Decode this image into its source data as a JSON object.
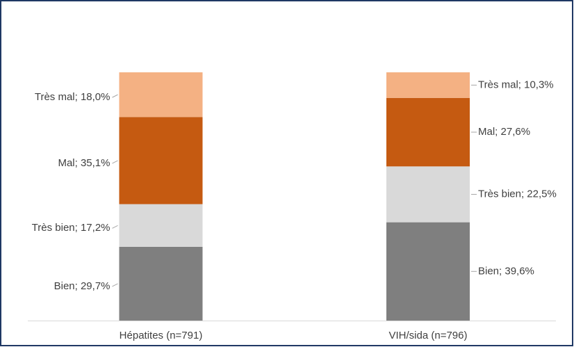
{
  "chart_data": {
    "type": "bar",
    "stacked": true,
    "categories": [
      "Hépatites (n=791)",
      "VIH/sida (n=796)"
    ],
    "ylim": [
      0,
      100
    ],
    "series": [
      {
        "name": "Bien",
        "color": "#7f7f7f",
        "values": [
          29.7,
          39.6
        ],
        "value_labels": [
          "Bien; 29,7%",
          "Bien; 39,6%"
        ]
      },
      {
        "name": "Très bien",
        "color": "#d9d9d9",
        "values": [
          17.2,
          22.5
        ],
        "value_labels": [
          "Très bien; 17,2%",
          "Très bien; 22,5%"
        ]
      },
      {
        "name": "Mal",
        "color": "#c55a11",
        "values": [
          35.1,
          27.6
        ],
        "value_labels": [
          "Mal; 35,1%",
          "Mal; 27,6%"
        ]
      },
      {
        "name": "Très mal",
        "color": "#f4b183",
        "values": [
          18.0,
          10.3
        ],
        "value_labels": [
          "Très mal; 18,0%",
          "Très mal; 10,3%"
        ]
      }
    ]
  }
}
